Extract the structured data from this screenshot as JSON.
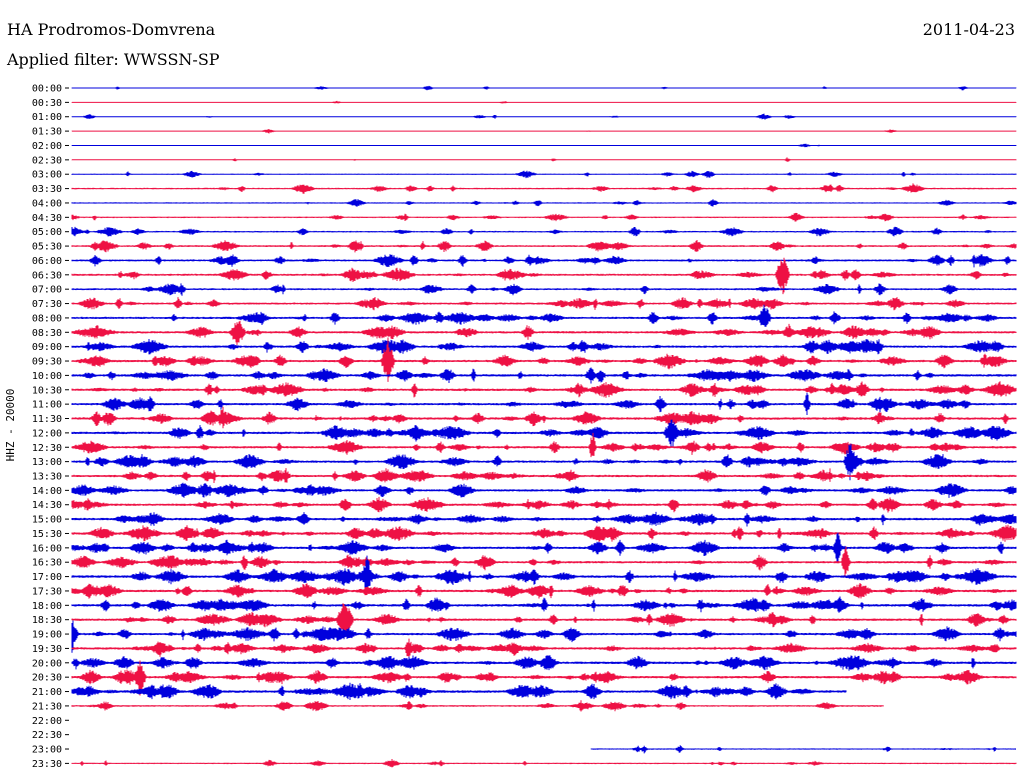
{
  "header": {
    "station": "HA Prodromos-Domvrena",
    "date": "2011-04-23",
    "filter": "Applied filter: WWSSN-SP"
  },
  "chart_data": {
    "type": "line",
    "title": "HA Prodromos-Domvrena",
    "subtitle": "Applied filter: WWSSN-SP",
    "ylabel": "HHZ - 20000",
    "xlabel": "",
    "colors": [
      "#0000dd",
      "#ee1144"
    ],
    "rows": [
      {
        "time": "00:00",
        "activity": 0.15,
        "start": 0.0,
        "end": 1.0
      },
      {
        "time": "00:30",
        "activity": 0.03,
        "start": 0.0,
        "end": 1.0
      },
      {
        "time": "01:00",
        "activity": 0.15,
        "start": 0.0,
        "end": 1.0
      },
      {
        "time": "01:30",
        "activity": 0.06,
        "start": 0.0,
        "end": 1.0
      },
      {
        "time": "02:00",
        "activity": 0.03,
        "start": 0.0,
        "end": 1.0
      },
      {
        "time": "02:30",
        "activity": 0.08,
        "start": 0.0,
        "end": 1.0
      },
      {
        "time": "03:00",
        "activity": 0.3,
        "start": 0.0,
        "end": 1.0
      },
      {
        "time": "03:30",
        "activity": 0.45,
        "start": 0.0,
        "end": 1.0
      },
      {
        "time": "04:00",
        "activity": 0.3,
        "start": 0.0,
        "end": 1.0
      },
      {
        "time": "04:30",
        "activity": 0.4,
        "start": 0.0,
        "end": 1.0
      },
      {
        "time": "05:00",
        "activity": 0.45,
        "start": 0.0,
        "end": 1.0
      },
      {
        "time": "05:30",
        "activity": 0.6,
        "start": 0.0,
        "end": 1.0
      },
      {
        "time": "06:00",
        "activity": 0.7,
        "start": 0.0,
        "end": 1.0
      },
      {
        "time": "06:30",
        "activity": 0.7,
        "start": 0.0,
        "end": 1.0
      },
      {
        "time": "07:00",
        "activity": 0.65,
        "start": 0.0,
        "end": 1.0
      },
      {
        "time": "07:30",
        "activity": 0.7,
        "start": 0.0,
        "end": 1.0
      },
      {
        "time": "08:00",
        "activity": 0.8,
        "start": 0.0,
        "end": 1.0
      },
      {
        "time": "08:30",
        "activity": 0.85,
        "start": 0.0,
        "end": 1.0
      },
      {
        "time": "09:00",
        "activity": 0.85,
        "start": 0.0,
        "end": 1.0
      },
      {
        "time": "09:30",
        "activity": 0.85,
        "start": 0.0,
        "end": 1.0
      },
      {
        "time": "10:00",
        "activity": 0.9,
        "start": 0.0,
        "end": 1.0
      },
      {
        "time": "10:30",
        "activity": 0.9,
        "start": 0.0,
        "end": 1.0
      },
      {
        "time": "11:00",
        "activity": 0.85,
        "start": 0.0,
        "end": 1.0
      },
      {
        "time": "11:30",
        "activity": 0.9,
        "start": 0.0,
        "end": 1.0
      },
      {
        "time": "12:00",
        "activity": 0.9,
        "start": 0.0,
        "end": 1.0
      },
      {
        "time": "12:30",
        "activity": 0.85,
        "start": 0.0,
        "end": 1.0
      },
      {
        "time": "13:00",
        "activity": 0.85,
        "start": 0.0,
        "end": 1.0
      },
      {
        "time": "13:30",
        "activity": 0.85,
        "start": 0.0,
        "end": 1.0
      },
      {
        "time": "14:00",
        "activity": 0.85,
        "start": 0.0,
        "end": 1.0
      },
      {
        "time": "14:30",
        "activity": 0.85,
        "start": 0.0,
        "end": 1.0
      },
      {
        "time": "15:00",
        "activity": 0.95,
        "start": 0.0,
        "end": 1.0
      },
      {
        "time": "15:30",
        "activity": 0.95,
        "start": 0.0,
        "end": 1.0
      },
      {
        "time": "16:00",
        "activity": 0.9,
        "start": 0.0,
        "end": 1.0
      },
      {
        "time": "16:30",
        "activity": 0.85,
        "start": 0.0,
        "end": 1.0
      },
      {
        "time": "17:00",
        "activity": 0.95,
        "start": 0.0,
        "end": 1.0
      },
      {
        "time": "17:30",
        "activity": 0.9,
        "start": 0.0,
        "end": 1.0
      },
      {
        "time": "18:00",
        "activity": 0.95,
        "start": 0.0,
        "end": 1.0
      },
      {
        "time": "18:30",
        "activity": 0.9,
        "start": 0.0,
        "end": 1.0
      },
      {
        "time": "19:00",
        "activity": 0.85,
        "start": 0.0,
        "end": 1.0
      },
      {
        "time": "19:30",
        "activity": 0.85,
        "start": 0.0,
        "end": 1.0
      },
      {
        "time": "20:00",
        "activity": 0.95,
        "start": 0.0,
        "end": 1.0
      },
      {
        "time": "20:30",
        "activity": 0.9,
        "start": 0.0,
        "end": 1.0
      },
      {
        "time": "21:00",
        "activity": 0.95,
        "start": 0.0,
        "end": 0.82
      },
      {
        "time": "21:30",
        "activity": 0.5,
        "start": 0.0,
        "end": 0.86
      },
      {
        "time": "22:00",
        "activity": 0.0,
        "start": 0.0,
        "end": 0.0
      },
      {
        "time": "22:30",
        "activity": 0.0,
        "start": 0.0,
        "end": 0.0
      },
      {
        "time": "23:00",
        "activity": 0.3,
        "start": 0.55,
        "end": 1.0
      },
      {
        "time": "23:30",
        "activity": 0.35,
        "start": 0.0,
        "end": 1.0
      }
    ]
  }
}
